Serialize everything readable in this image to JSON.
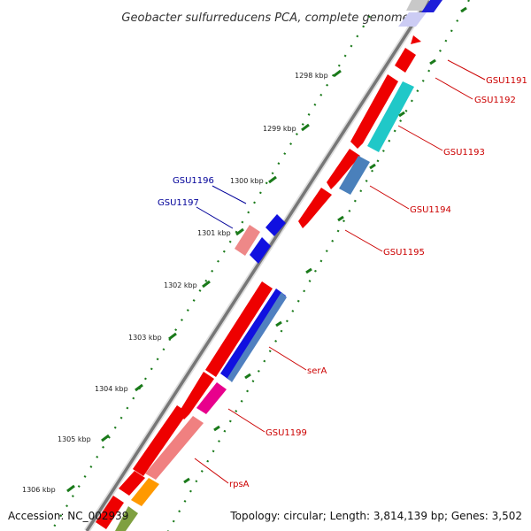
{
  "title": "Geobacter sulfurreducens PCA, complete genome",
  "footer": {
    "accession": "Accession: NC_002939",
    "summary": "Topology: circular; Length: 3,814,139 bp; Genes: 3,502"
  },
  "colors": {
    "forward_label": "#cc0000",
    "reverse_label": "#000099",
    "backbone": "#777777",
    "tick": "#1a7a1a"
  },
  "ticks": [
    "1298 kbp",
    "1299 kbp",
    "1300 kbp",
    "1301 kbp",
    "1302 kbp",
    "1303 kbp",
    "1304 kbp",
    "1305 kbp",
    "1306 kbp"
  ],
  "genes": [
    {
      "label": "GSU1191",
      "strand": "forward",
      "color": "#ee0000"
    },
    {
      "label": "GSU1192",
      "strand": "forward",
      "color": "#ee0000"
    },
    {
      "label": "GSU1193",
      "strand": "forward",
      "color": "#ee0000"
    },
    {
      "label": "GSU1194",
      "strand": "forward",
      "color": "#ee0000"
    },
    {
      "label": "GSU1195",
      "strand": "forward",
      "color": "#ee0000"
    },
    {
      "label": "GSU1196",
      "strand": "reverse",
      "color": "#0000ee"
    },
    {
      "label": "GSU1197",
      "strand": "reverse",
      "color": "#f08080"
    },
    {
      "label": "serA",
      "strand": "forward",
      "color": "#ee0000"
    },
    {
      "label": "GSU1199",
      "strand": "forward",
      "color": "#ee0000"
    },
    {
      "label": "rpsA",
      "strand": "forward",
      "color": "#ee0000"
    }
  ]
}
